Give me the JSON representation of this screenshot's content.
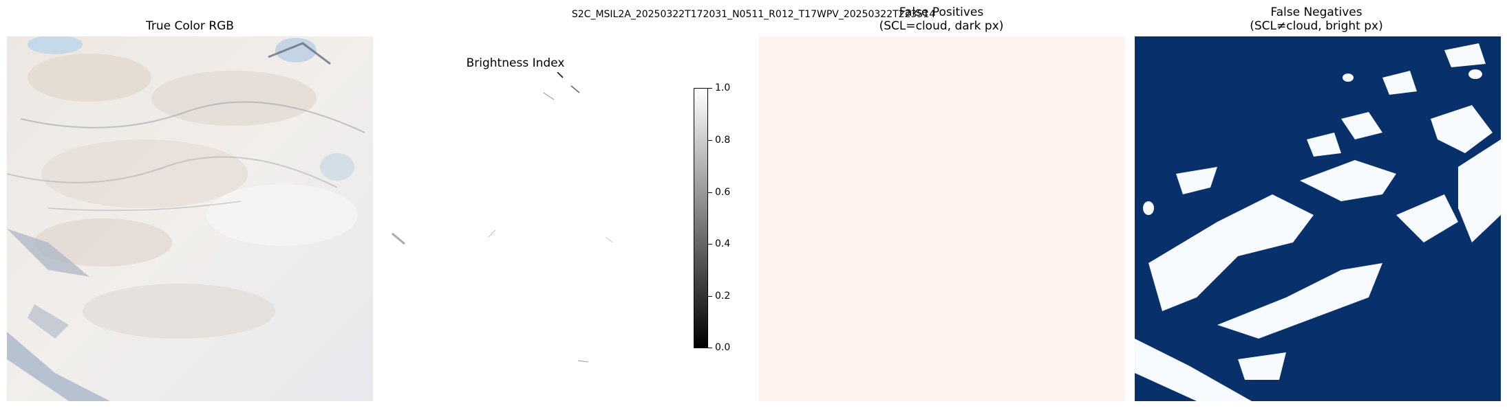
{
  "figure": {
    "suptitle": "S2C_MSIL2A_20250322T172031_N0511_R012_T17WPV_20250322T223514"
  },
  "panels": [
    {
      "title": "True Color RGB"
    },
    {
      "title": "Brightness Index"
    },
    {
      "title_line1": "False Positives",
      "title_line2": "(SCL=cloud, dark px)",
      "fill": "#fff2ee"
    },
    {
      "title_line1": "False Negatives",
      "title_line2": "(SCL≠cloud, bright px)",
      "fill": "#08306b",
      "background": "#f7fbff"
    }
  ],
  "colorbar": {
    "ticks": [
      "1.0",
      "0.8",
      "0.6",
      "0.4",
      "0.2",
      "0.0"
    ]
  }
}
